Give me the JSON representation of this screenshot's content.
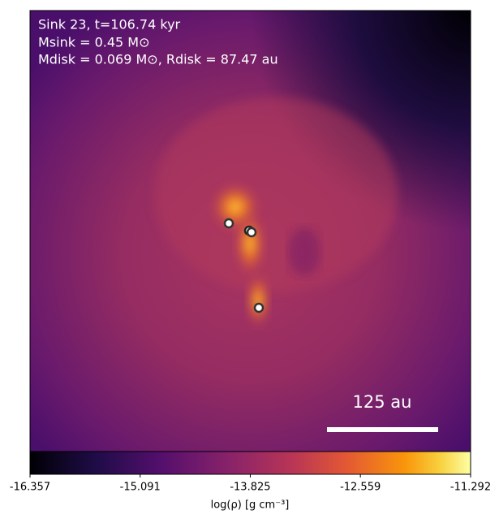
{
  "chart_data": {
    "type": "image",
    "annotations": [
      "Sink 23, t=106.74 kyr",
      "Msink = 0.45 M⊙",
      "Mdisk = 0.069 M⊙, Rdisk = 87.47 au"
    ],
    "scale_bar_label": "125 au",
    "colorbar": {
      "lim": [
        -16.357,
        -11.292
      ],
      "ticks": [
        -16.357,
        -15.091,
        -13.825,
        -12.559,
        -11.292
      ],
      "label": "log(ρ) [g cm⁻³]"
    }
  }
}
